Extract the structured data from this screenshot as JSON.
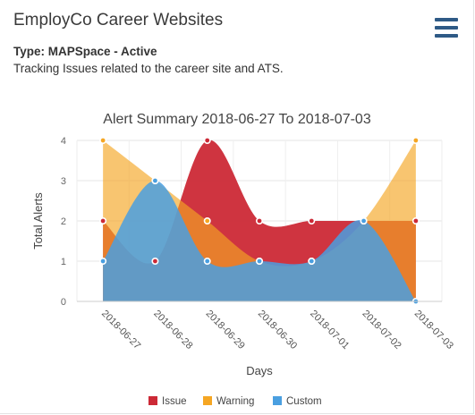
{
  "header": {
    "title": "EmployCo Career Websites",
    "menu_icon": "hamburger-menu-icon"
  },
  "info": {
    "type_line": "Type: MAPSpace - Active",
    "description": "Tracking Issues related to the career site and ATS."
  },
  "chart_data": {
    "type": "area",
    "title": "Alert Summary 2018-06-27 To 2018-07-03",
    "xlabel": "Days",
    "ylabel": "Total Alerts",
    "categories": [
      "2018-06-27",
      "2018-06-28",
      "2018-06-29",
      "2018-06-30",
      "2018-07-01",
      "2018-07-02",
      "2018-07-03"
    ],
    "ylim": [
      0,
      4
    ],
    "yticks": [
      0,
      1,
      2,
      3,
      4
    ],
    "grid": true,
    "legend": "bottom",
    "series": [
      {
        "name": "Issue",
        "color": "#cc2936",
        "values": [
          2,
          1,
          4,
          2,
          2,
          2,
          2
        ]
      },
      {
        "name": "Warning",
        "color": "#f5a623",
        "values": [
          4,
          3,
          2,
          1,
          1,
          2,
          4
        ]
      },
      {
        "name": "Custom",
        "color": "#4a9fe0",
        "values": [
          1,
          3,
          1,
          1,
          1,
          2,
          0
        ]
      }
    ]
  }
}
